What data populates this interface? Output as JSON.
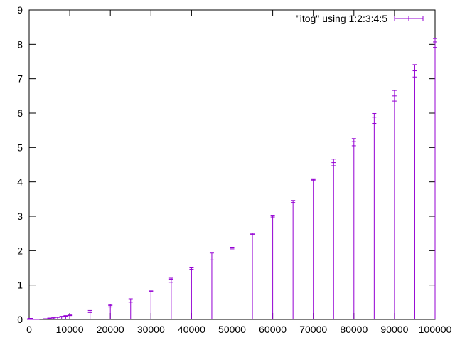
{
  "chart_data": {
    "type": "candlestick",
    "title": "",
    "xlabel": "",
    "ylabel": "",
    "xlim": [
      0,
      100000
    ],
    "ylim": [
      0,
      9
    ],
    "x_ticks": [
      0,
      10000,
      20000,
      30000,
      40000,
      50000,
      60000,
      70000,
      80000,
      90000,
      100000
    ],
    "y_ticks": [
      0,
      1,
      2,
      3,
      4,
      5,
      6,
      7,
      8,
      9
    ],
    "grid": false,
    "legend_position": "top-right",
    "series": [
      {
        "name": "\"itog\" using 1:2:3:4:5",
        "color": "#9400d3",
        "points": [
          {
            "x": 0,
            "open": 0.0,
            "low": 0.0,
            "high": 0.0,
            "close": 0.0
          },
          {
            "x": 100,
            "open": 0.0,
            "low": 0.0,
            "high": 0.03,
            "close": 0.0
          },
          {
            "x": 200,
            "open": 0.0,
            "low": 0.0,
            "high": 0.03,
            "close": 0.0
          },
          {
            "x": 300,
            "open": 0.0,
            "low": 0.0,
            "high": 0.03,
            "close": 0.0
          },
          {
            "x": 400,
            "open": 0.0,
            "low": 0.0,
            "high": 0.03,
            "close": 0.0
          },
          {
            "x": 500,
            "open": 0.0,
            "low": 0.0,
            "high": 0.03,
            "close": 0.0
          },
          {
            "x": 1000,
            "open": 0.0,
            "low": 0.0,
            "high": 0.0,
            "close": 0.0
          },
          {
            "x": 2000,
            "open": 0.0,
            "low": 0.0,
            "high": 0.0,
            "close": 0.0
          },
          {
            "x": 3000,
            "open": 0.01,
            "low": 0.0,
            "high": 0.01,
            "close": 0.01
          },
          {
            "x": 4000,
            "open": 0.02,
            "low": 0.0,
            "high": 0.02,
            "close": 0.02
          },
          {
            "x": 5000,
            "open": 0.03,
            "low": 0.0,
            "high": 0.04,
            "close": 0.03
          },
          {
            "x": 6000,
            "open": 0.04,
            "low": 0.0,
            "high": 0.05,
            "close": 0.04
          },
          {
            "x": 7000,
            "open": 0.06,
            "low": 0.0,
            "high": 0.07,
            "close": 0.06
          },
          {
            "x": 8000,
            "open": 0.08,
            "low": 0.0,
            "high": 0.09,
            "close": 0.07
          },
          {
            "x": 9000,
            "open": 0.1,
            "low": 0.0,
            "high": 0.11,
            "close": 0.09
          },
          {
            "x": 10000,
            "open": 0.12,
            "low": 0.0,
            "high": 0.13,
            "close": 0.11
          },
          {
            "x": 15000,
            "open": 0.22,
            "low": 0.0,
            "high": 0.26,
            "close": 0.2
          },
          {
            "x": 20000,
            "open": 0.4,
            "low": 0.0,
            "high": 0.43,
            "close": 0.36
          },
          {
            "x": 25000,
            "open": 0.58,
            "low": 0.0,
            "high": 0.6,
            "close": 0.5
          },
          {
            "x": 30000,
            "open": 0.82,
            "low": 0.0,
            "high": 0.83,
            "close": 0.8
          },
          {
            "x": 35000,
            "open": 1.17,
            "low": 0.0,
            "high": 1.2,
            "close": 1.08
          },
          {
            "x": 40000,
            "open": 1.5,
            "low": 0.0,
            "high": 1.52,
            "close": 1.46
          },
          {
            "x": 45000,
            "open": 1.93,
            "low": 0.0,
            "high": 1.95,
            "close": 1.73
          },
          {
            "x": 50000,
            "open": 2.08,
            "low": 0.0,
            "high": 2.1,
            "close": 2.05
          },
          {
            "x": 55000,
            "open": 2.5,
            "low": 0.0,
            "high": 2.51,
            "close": 2.47
          },
          {
            "x": 60000,
            "open": 3.0,
            "low": 0.0,
            "high": 3.03,
            "close": 2.96
          },
          {
            "x": 65000,
            "open": 3.45,
            "low": 0.0,
            "high": 3.46,
            "close": 3.4
          },
          {
            "x": 70000,
            "open": 4.07,
            "low": 0.0,
            "high": 4.09,
            "close": 4.05
          },
          {
            "x": 75000,
            "open": 4.56,
            "low": 0.0,
            "high": 4.66,
            "close": 4.47
          },
          {
            "x": 80000,
            "open": 5.17,
            "low": 0.0,
            "high": 5.26,
            "close": 5.05
          },
          {
            "x": 85000,
            "open": 5.88,
            "low": 0.0,
            "high": 5.99,
            "close": 5.7
          },
          {
            "x": 90000,
            "open": 6.5,
            "low": 0.0,
            "high": 6.66,
            "close": 6.35
          },
          {
            "x": 95000,
            "open": 7.23,
            "low": 0.0,
            "high": 7.41,
            "close": 7.05
          },
          {
            "x": 100000,
            "open": 8.07,
            "low": 0.0,
            "high": 8.17,
            "close": 7.91
          }
        ]
      }
    ]
  }
}
